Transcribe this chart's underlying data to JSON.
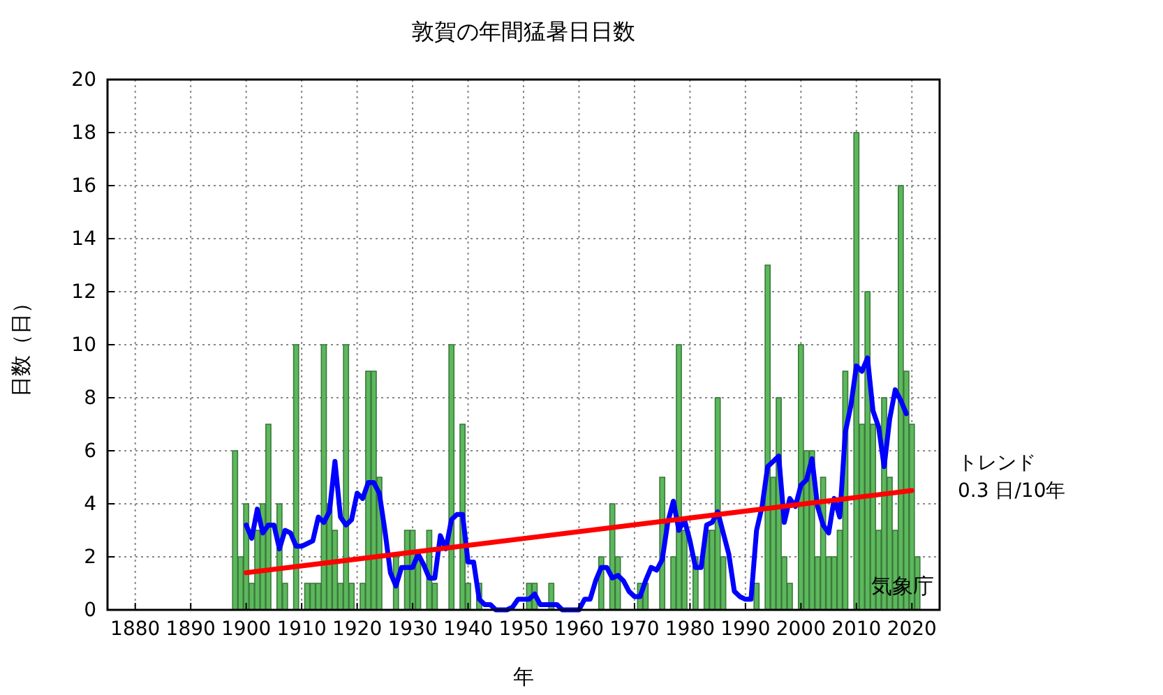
{
  "chart_data": {
    "type": "bar",
    "title": "敦賀の年間猛暑日日数",
    "xlabel": "年",
    "ylabel": "日数（日）",
    "xlim": [
      1875,
      2025
    ],
    "xticks": [
      1880,
      1890,
      1900,
      1910,
      1920,
      1930,
      1940,
      1950,
      1960,
      1970,
      1980,
      1990,
      2000,
      2010,
      2020
    ],
    "ylim": [
      0,
      20
    ],
    "yticks": [
      0,
      2,
      4,
      6,
      8,
      10,
      12,
      14,
      16,
      18,
      20
    ],
    "grid": true,
    "annotations": [
      "0.3 日/10年",
      "気象庁"
    ],
    "series": [
      {
        "color": "#5cb85c",
        "x": [
          1898,
          1899,
          1900,
          1901,
          1902,
          1903,
          1904,
          1905,
          1906,
          1907,
          1908,
          1909,
          1910,
          1911,
          1912,
          1913,
          1914,
          1915,
          1916,
          1917,
          1918,
          1919,
          1920,
          1921,
          1922,
          1923,
          1924,
          1925,
          1926,
          1927,
          1928,
          1929,
          1930,
          1931,
          1932,
          1933,
          1934,
          1935,
          1936,
          1937,
          1938,
          1939,
          1940,
          1941,
          1942,
          1943,
          1944,
          1945,
          1946,
          1947,
          1948,
          1949,
          1950,
          1951,
          1952,
          1953,
          1954,
          1955,
          1956,
          1957,
          1958,
          1959,
          1960,
          1961,
          1962,
          1963,
          1964,
          1965,
          1966,
          1967,
          1968,
          1969,
          1970,
          1971,
          1972,
          1973,
          1974,
          1975,
          1976,
          1977,
          1978,
          1979,
          1980,
          1981,
          1982,
          1983,
          1984,
          1985,
          1986,
          1987,
          1988,
          1989,
          1990,
          1991,
          1992,
          1993,
          1994,
          1995,
          1996,
          1997,
          1998,
          1999,
          2000,
          2001,
          2002,
          2003,
          2004,
          2005,
          2006,
          2007,
          2008,
          2009,
          2010,
          2011,
          2012,
          2013,
          2014,
          2015,
          2016,
          2017,
          2018,
          2019,
          2020,
          2021
        ],
        "values": [
          6,
          2,
          4,
          1,
          3,
          4,
          7,
          0,
          4,
          1,
          0,
          10,
          0,
          1,
          1,
          1,
          10,
          4,
          3,
          1,
          10,
          1,
          0,
          1,
          9,
          9,
          5,
          0,
          0,
          2,
          0,
          3,
          3,
          2,
          0,
          3,
          1,
          0,
          0,
          10,
          0,
          7,
          1,
          0,
          1,
          0,
          0,
          0,
          0,
          0,
          0,
          0,
          0,
          1,
          1,
          0,
          0,
          1,
          0,
          0,
          0,
          0,
          0,
          0,
          0,
          0,
          2,
          0,
          4,
          2,
          0,
          0,
          0,
          1,
          1,
          0,
          0,
          5,
          0,
          2,
          10,
          3,
          0,
          2,
          0,
          3,
          3,
          8,
          2,
          0,
          0,
          0,
          0,
          0,
          1,
          0,
          13,
          5,
          8,
          2,
          1,
          0,
          10,
          6,
          6,
          2,
          5,
          2,
          2,
          3,
          9,
          0,
          18,
          7,
          12,
          7,
          3,
          8,
          5,
          3,
          16,
          9,
          7,
          2
        ]
      },
      {
        "type": "line",
        "color": "#0000ff",
        "x": [
          1900,
          1901,
          1902,
          1903,
          1904,
          1905,
          1906,
          1907,
          1908,
          1909,
          1910,
          1911,
          1912,
          1913,
          1914,
          1915,
          1916,
          1917,
          1918,
          1919,
          1920,
          1921,
          1922,
          1923,
          1924,
          1925,
          1926,
          1927,
          1928,
          1929,
          1930,
          1931,
          1932,
          1933,
          1934,
          1935,
          1936,
          1937,
          1938,
          1939,
          1940,
          1941,
          1942,
          1943,
          1944,
          1945,
          1946,
          1947,
          1948,
          1949,
          1950,
          1951,
          1952,
          1953,
          1954,
          1955,
          1956,
          1957,
          1958,
          1959,
          1960,
          1961,
          1962,
          1963,
          1964,
          1965,
          1966,
          1967,
          1968,
          1969,
          1970,
          1971,
          1972,
          1973,
          1974,
          1975,
          1976,
          1977,
          1978,
          1979,
          1980,
          1981,
          1982,
          1983,
          1984,
          1985,
          1986,
          1987,
          1988,
          1989,
          1990,
          1991,
          1992,
          1993,
          1994,
          1995,
          1996,
          1997,
          1998,
          1999,
          2000,
          2001,
          2002,
          2003,
          2004,
          2005,
          2006,
          2007,
          2008,
          2009,
          2010,
          2011,
          2012,
          2013,
          2014,
          2015,
          2016,
          2017,
          2018,
          2019
        ],
        "values": [
          3.2,
          2.7,
          3.8,
          2.9,
          3.2,
          3.2,
          2.3,
          3.0,
          2.9,
          2.4,
          2.4,
          2.5,
          2.6,
          3.5,
          3.3,
          3.7,
          5.6,
          3.5,
          3.2,
          3.4,
          4.4,
          4.2,
          4.8,
          4.8,
          4.4,
          3.0,
          1.4,
          0.9,
          1.6,
          1.6,
          1.6,
          2.1,
          1.7,
          1.2,
          1.2,
          2.8,
          2.3,
          3.4,
          3.6,
          3.6,
          1.8,
          1.8,
          0.4,
          0.2,
          0.2,
          0,
          0,
          0,
          0.1,
          0.4,
          0.4,
          0.4,
          0.6,
          0.2,
          0.2,
          0.2,
          0.2,
          0,
          0,
          0,
          0,
          0.4,
          0.4,
          1.1,
          1.6,
          1.6,
          1.2,
          1.3,
          1.1,
          0.7,
          0.5,
          0.5,
          1.1,
          1.6,
          1.5,
          1.9,
          3.3,
          4.1,
          3.0,
          3.4,
          2.6,
          1.6,
          1.6,
          3.2,
          3.3,
          3.7,
          2.9,
          2.1,
          0.7,
          0.5,
          0.4,
          0.4,
          3.0,
          3.9,
          5.4,
          5.6,
          5.8,
          3.3,
          4.2,
          3.9,
          4.7,
          4.9,
          5.7,
          3.9,
          3.2,
          2.9,
          4.2,
          3.5,
          6.7,
          7.7,
          9.2,
          9.0,
          9.5,
          7.5,
          6.9,
          5.4,
          7.2,
          8.3,
          7.9,
          7.4
        ]
      },
      {
        "type": "line",
        "name": "トレンド",
        "color": "#ff0000",
        "x": [
          1900,
          2020
        ],
        "values": [
          1.4,
          4.5
        ]
      }
    ]
  }
}
